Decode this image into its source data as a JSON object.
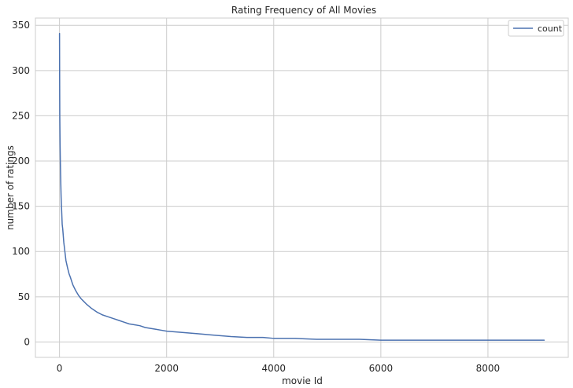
{
  "chart_data": {
    "type": "line",
    "title": "Rating Frequency of All Movies",
    "xlabel": "movie Id",
    "ylabel": "number of ratings",
    "xlim": [
      -450,
      9500
    ],
    "ylim": [
      -17,
      358
    ],
    "xticks": [
      0,
      2000,
      4000,
      6000,
      8000
    ],
    "yticks": [
      0,
      50,
      100,
      150,
      200,
      250,
      300,
      350
    ],
    "xtick_labels": [
      "0",
      "2000",
      "4000",
      "6000",
      "8000"
    ],
    "ytick_labels": [
      "0",
      "50",
      "100",
      "150",
      "200",
      "250",
      "300",
      "350"
    ],
    "grid": true,
    "legend_position": "top-right",
    "colors": {
      "series": "#4c72b0",
      "grid": "#cccccc",
      "axes_edge": "#cccccc"
    },
    "series": [
      {
        "name": "count",
        "x": [
          0,
          2,
          5,
          10,
          15,
          20,
          30,
          40,
          50,
          60,
          80,
          100,
          120,
          150,
          180,
          200,
          250,
          300,
          350,
          400,
          450,
          500,
          600,
          700,
          800,
          900,
          1000,
          1100,
          1200,
          1300,
          1400,
          1500,
          1600,
          1700,
          1800,
          1900,
          2000,
          2200,
          2400,
          2600,
          2800,
          3000,
          3200,
          3500,
          3800,
          4000,
          4400,
          4800,
          5200,
          5600,
          6000,
          6500,
          7000,
          7500,
          8000,
          8500,
          9000,
          9050
        ],
        "y": [
          341,
          300,
          250,
          220,
          200,
          185,
          160,
          145,
          130,
          125,
          110,
          100,
          90,
          82,
          75,
          72,
          63,
          57,
          52,
          48,
          45,
          42,
          37,
          33,
          30,
          28,
          26,
          24,
          22,
          20,
          19,
          18,
          16,
          15,
          14,
          13,
          12,
          11,
          10,
          9,
          8,
          7,
          6,
          5,
          5,
          4,
          4,
          3,
          3,
          3,
          2,
          2,
          2,
          2,
          2,
          2,
          2,
          2
        ]
      }
    ]
  }
}
